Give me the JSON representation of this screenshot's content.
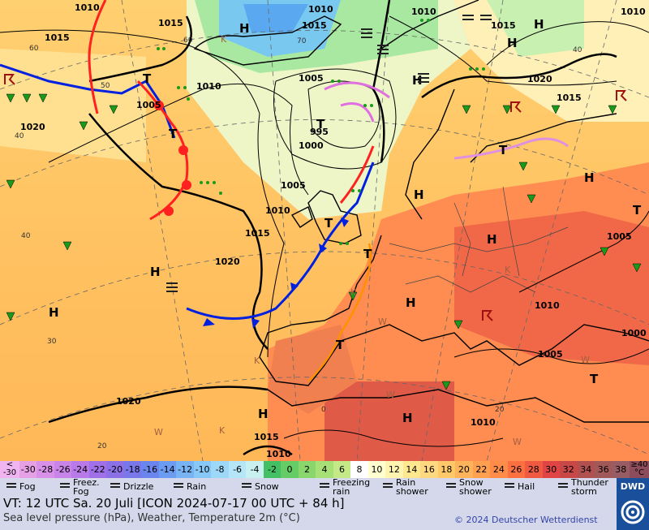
{
  "title": "VT: 12 UTC Sa.  20 Juli [ICON 2024-07-17  00 UTC + 84 h]",
  "subtitle": "Sea level pressure (hPa), Weather, Temperature 2m (°C)",
  "copyright": "© 2024 Deutscher Wetterdienst",
  "logo_text": "DWD",
  "scale": {
    "low_label_top": "<",
    "low_label_bottom": "-30",
    "high_label_top": "≥40",
    "high_label_bottom": "°C",
    "ticks": [
      "-30",
      "-28",
      "-26",
      "-24",
      "-22",
      "-20",
      "-18",
      "-16",
      "-14",
      "-12",
      "-10",
      "-8",
      "-6",
      "-4",
      "-2",
      "0",
      "2",
      "4",
      "6",
      "8",
      "10",
      "12",
      "14",
      "16",
      "18",
      "20",
      "22",
      "24",
      "26",
      "28",
      "30",
      "32",
      "34",
      "36",
      "38"
    ],
    "colors": [
      "#e6a0e6",
      "#d890e8",
      "#c884e8",
      "#b87ae8",
      "#a070e8",
      "#8c70e8",
      "#7878ea",
      "#6a86ee",
      "#6c9cf2",
      "#78b4f4",
      "#88c8f6",
      "#9ed8f8",
      "#b4e6f8",
      "#c8f0f0",
      "#44c064",
      "#66cc66",
      "#88d66c",
      "#a8e078",
      "#c4ea88",
      "#ffffff",
      "#ffffd0",
      "#fff4b0",
      "#ffe890",
      "#ffd880",
      "#ffc868",
      "#ffb45c",
      "#ffa050",
      "#ff8c48",
      "#ff7040",
      "#f05a40",
      "#e04444",
      "#c84848",
      "#b05050",
      "#a05858",
      "#985c64"
    ]
  },
  "legend": [
    {
      "label": "Fog",
      "icon": "fog-icon"
    },
    {
      "label": "Freez.\nFog",
      "icon": "freezing-fog-icon"
    },
    {
      "label": "Drizzle",
      "icon": "drizzle-icon"
    },
    {
      "label": "Rain",
      "icon": "rain-icon"
    },
    {
      "label": "Snow",
      "icon": "snow-icon"
    },
    {
      "label": "Freezing\nrain",
      "icon": "freezing-rain-icon"
    },
    {
      "label": "Rain\nshower",
      "icon": "rain-shower-icon"
    },
    {
      "label": "Snow\nshower",
      "icon": "snow-shower-icon"
    },
    {
      "label": "Hail",
      "icon": "hail-icon"
    },
    {
      "label": "Thunder\nstorm",
      "icon": "thunderstorm-icon"
    }
  ],
  "map": {
    "isobar_labels": [
      "1010",
      "1015",
      "1020",
      "1015",
      "1010",
      "1005",
      "1005",
      "1000",
      "995",
      "1005",
      "1010",
      "1015",
      "1020",
      "1015",
      "1010",
      "1005",
      "1010",
      "1000",
      "1005",
      "1010",
      "1015",
      "1020",
      "1015",
      "1010",
      "1010",
      "1020",
      "1015",
      "1010"
    ],
    "high_symbol": "H",
    "low_symbol": "T",
    "temp_labels": [
      "60",
      "70",
      "60",
      "50",
      "40",
      "40",
      "30",
      "20",
      "0",
      "20",
      "40"
    ],
    "mountain_letters": [
      "K",
      "K",
      "K",
      "K",
      "W",
      "W",
      "W",
      "W",
      "W",
      "K"
    ]
  }
}
